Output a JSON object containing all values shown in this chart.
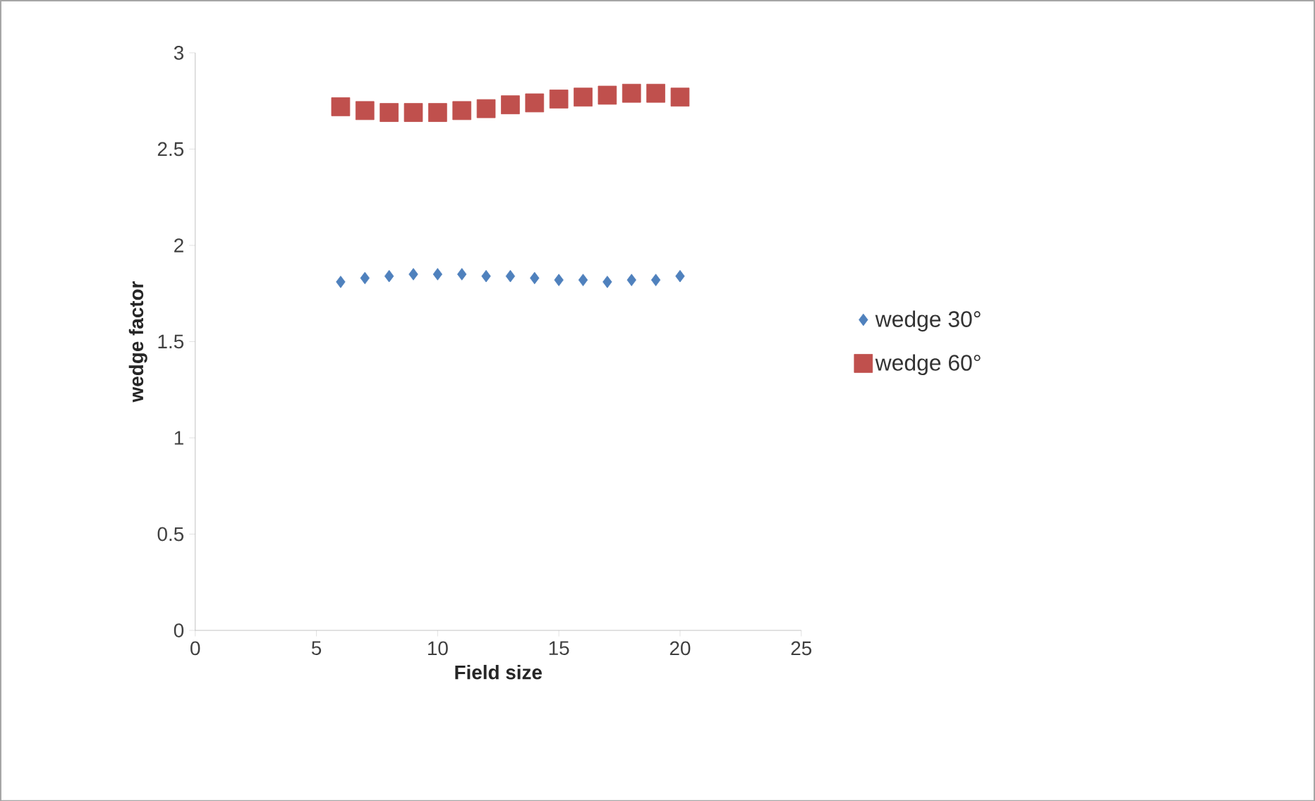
{
  "chart_data": {
    "type": "scatter",
    "xlabel": "Field size",
    "ylabel": "wedge factor",
    "xlim": [
      0,
      25
    ],
    "xticks": [
      0,
      5,
      10,
      15,
      20,
      25
    ],
    "ylim": [
      0,
      3
    ],
    "yticks": [
      0,
      0.5,
      1,
      1.5,
      2,
      2.5,
      3
    ],
    "grid": false,
    "legend": "right",
    "x": [
      6,
      7,
      8,
      9,
      10,
      11,
      12,
      13,
      14,
      15,
      16,
      17,
      18,
      19,
      20
    ],
    "series": [
      {
        "name": "wedge 30°",
        "color": "#4f81bd",
        "marker": "diamond",
        "values": [
          1.81,
          1.83,
          1.84,
          1.85,
          1.85,
          1.85,
          1.84,
          1.84,
          1.83,
          1.82,
          1.82,
          1.81,
          1.82,
          1.82,
          1.84
        ]
      },
      {
        "name": "wedge 60°",
        "color": "#c0504d",
        "marker": "square",
        "values": [
          2.72,
          2.7,
          2.69,
          2.69,
          2.69,
          2.7,
          2.71,
          2.73,
          2.74,
          2.76,
          2.77,
          2.78,
          2.79,
          2.79,
          2.77
        ]
      }
    ]
  }
}
